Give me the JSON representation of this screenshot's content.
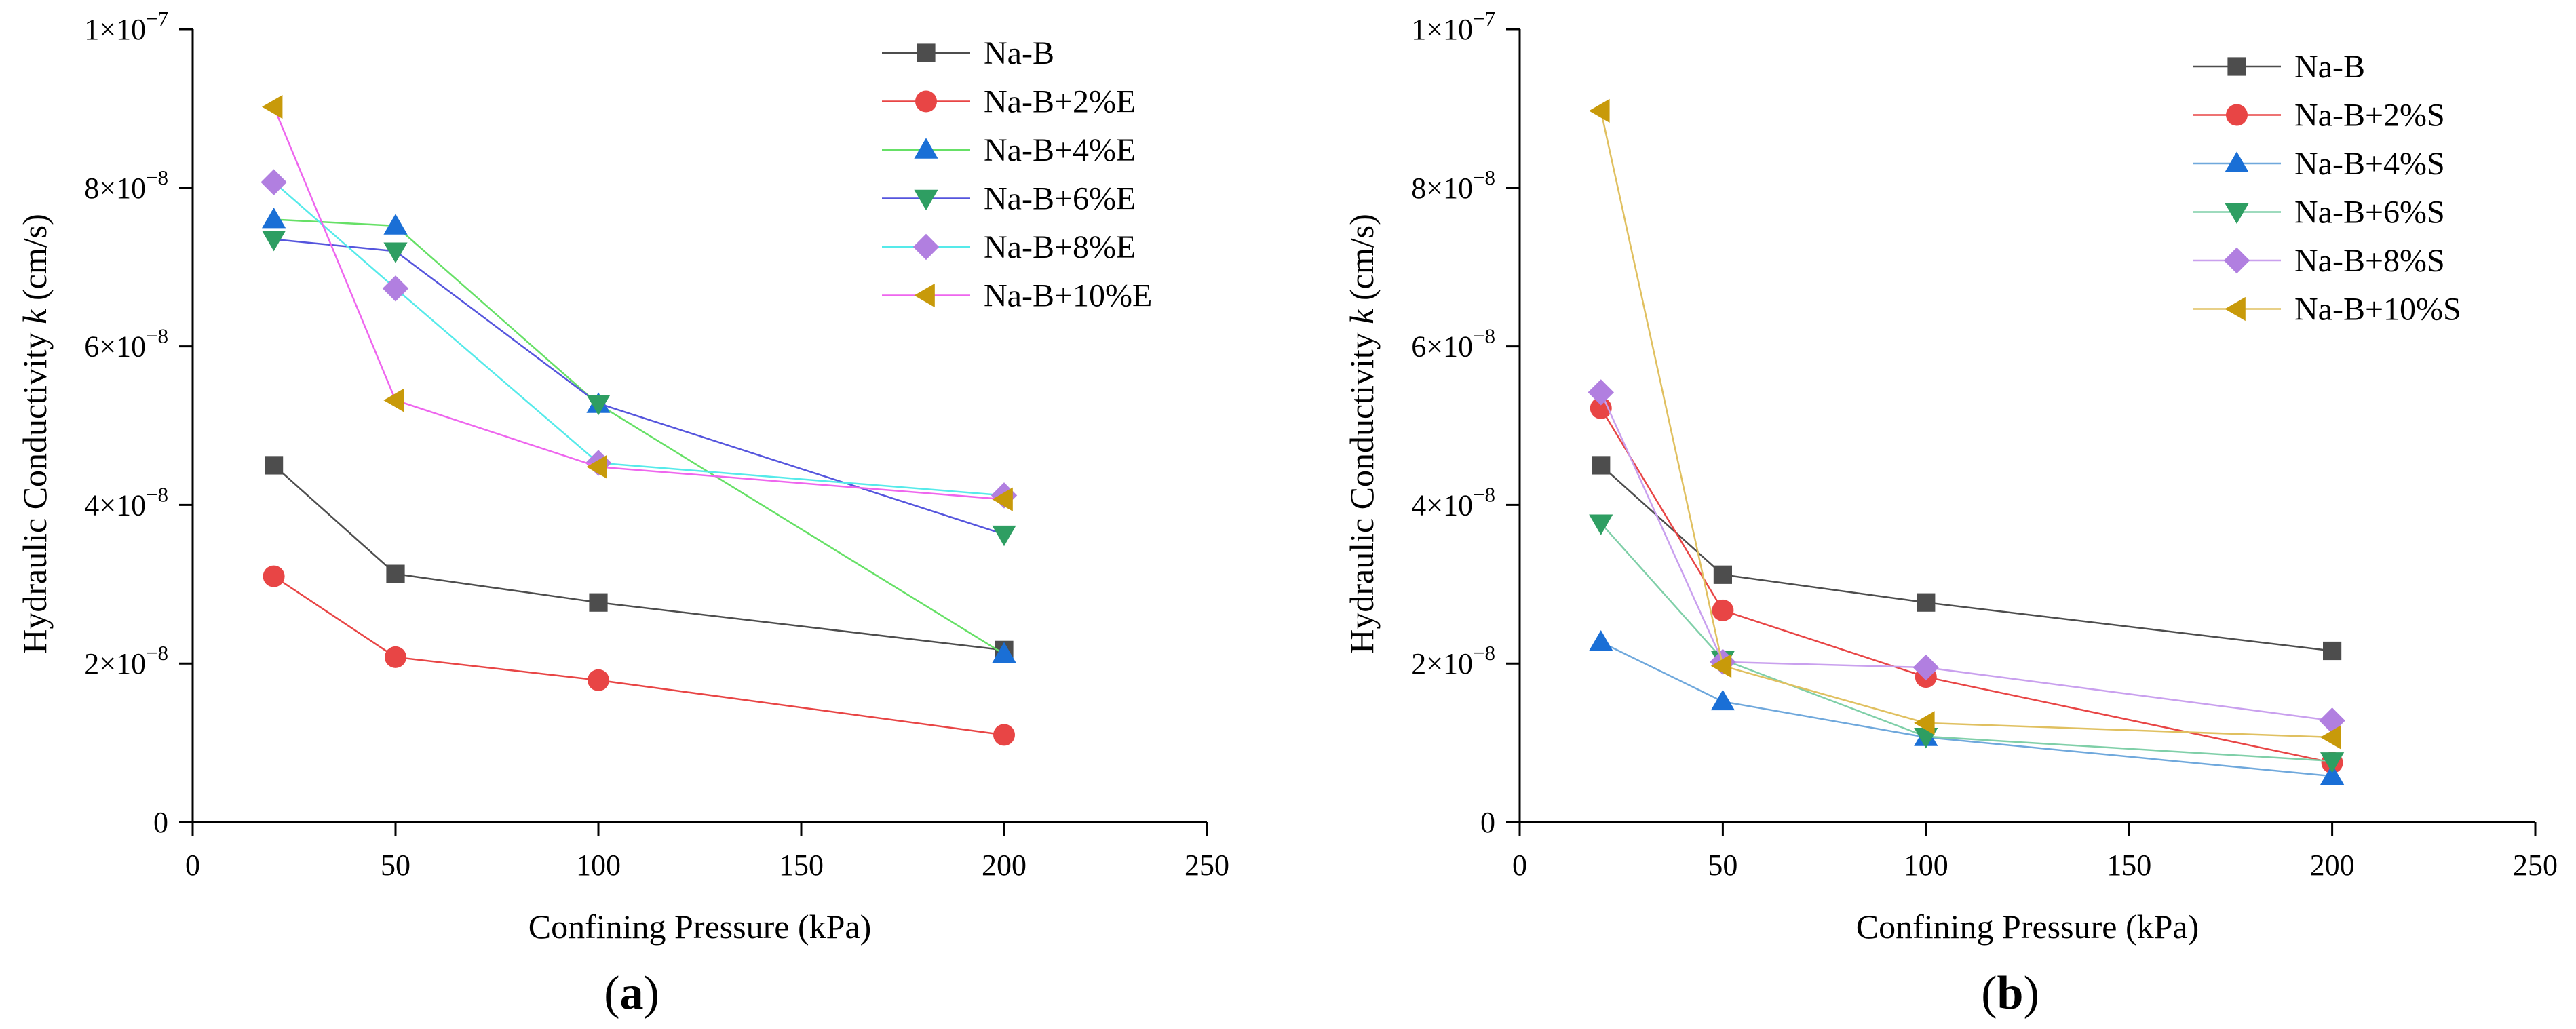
{
  "chart_data": [
    {
      "type": "line",
      "panel_label": "(a)",
      "title": "",
      "xlabel": "Confining Pressure (kPa)",
      "ylabel": "Hydraulic Conductivity k (cm/s)",
      "xlim": [
        0,
        250
      ],
      "ylim": [
        0,
        1e-07
      ],
      "x_ticks": [
        0,
        50,
        100,
        150,
        200,
        250
      ],
      "x_tick_labels": [
        "0",
        "50",
        "100",
        "150",
        "200",
        "250"
      ],
      "y_ticks": [
        0,
        2e-08,
        4e-08,
        6e-08,
        8e-08,
        1e-07
      ],
      "y_tick_labels": [
        {
          "base": "0",
          "exp": ""
        },
        {
          "base": "2×10",
          "exp": "−8"
        },
        {
          "base": "4×10",
          "exp": "−8"
        },
        {
          "base": "6×10",
          "exp": "−8"
        },
        {
          "base": "8×10",
          "exp": "−8"
        },
        {
          "base": "1×10",
          "exp": "−7"
        }
      ],
      "grid": false,
      "legend_position": "top-right",
      "x": [
        20,
        50,
        100,
        200
      ],
      "series": [
        {
          "name": "Na-B",
          "color": "#4d4d4d",
          "marker": "square",
          "values": [
            4.5e-08,
            3.13e-08,
            2.77e-08,
            2.17e-08
          ]
        },
        {
          "name": "Na-B+2%E",
          "color": "#e84545",
          "marker": "circle",
          "values": [
            3.1e-08,
            2.08e-08,
            1.79e-08,
            1.1e-08
          ]
        },
        {
          "name": "Na-B+4%E",
          "color": "#1a6fd6",
          "marker": "triangle-up",
          "line_color": "#66e066",
          "values": [
            7.6e-08,
            7.52e-08,
            5.27e-08,
            2.12e-08
          ]
        },
        {
          "name": "Na-B+6%E",
          "color": "#2e9e62",
          "marker": "triangle-down",
          "line_color": "#5555dd",
          "values": [
            7.35e-08,
            7.2e-08,
            5.28e-08,
            3.63e-08
          ]
        },
        {
          "name": "Na-B+8%E",
          "color": "#b17fe0",
          "marker": "diamond",
          "line_color": "#55eaea",
          "values": [
            8.07e-08,
            6.73e-08,
            4.53e-08,
            4.12e-08
          ]
        },
        {
          "name": "Na-B+10%E",
          "color": "#c89a0a",
          "marker": "triangle-left",
          "line_color": "#ee66ee",
          "values": [
            9.02e-08,
            5.32e-08,
            4.48e-08,
            4.07e-08
          ]
        }
      ]
    },
    {
      "type": "line",
      "panel_label": "(b)",
      "title": "",
      "xlabel": "Confining Pressure (kPa)",
      "ylabel": "Hydraulic Conductivity k (cm/s)",
      "xlim": [
        0,
        250
      ],
      "ylim": [
        0,
        1e-07
      ],
      "x_ticks": [
        0,
        50,
        100,
        150,
        200,
        250
      ],
      "x_tick_labels": [
        "0",
        "50",
        "100",
        "150",
        "200",
        "250"
      ],
      "y_ticks": [
        0,
        2e-08,
        4e-08,
        6e-08,
        8e-08,
        1e-07
      ],
      "y_tick_labels": [
        {
          "base": "0",
          "exp": ""
        },
        {
          "base": "2×10",
          "exp": "−8"
        },
        {
          "base": "4×10",
          "exp": "−8"
        },
        {
          "base": "6×10",
          "exp": "−8"
        },
        {
          "base": "8×10",
          "exp": "−8"
        },
        {
          "base": "1×10",
          "exp": "−7"
        }
      ],
      "grid": false,
      "legend_position": "top-right",
      "x": [
        20,
        50,
        100,
        200
      ],
      "series": [
        {
          "name": "Na-B",
          "color": "#4d4d4d",
          "marker": "square",
          "values": [
            4.5e-08,
            3.12e-08,
            2.77e-08,
            2.16e-08
          ]
        },
        {
          "name": "Na-B+2%S",
          "color": "#e84545",
          "marker": "circle",
          "values": [
            5.22e-08,
            2.67e-08,
            1.83e-08,
            7.5e-09
          ]
        },
        {
          "name": "Na-B+4%S",
          "color": "#1a6fd6",
          "marker": "triangle-up",
          "line_color": "#6fa8dc",
          "values": [
            2.27e-08,
            1.52e-08,
            1.07e-08,
            5.8e-09
          ]
        },
        {
          "name": "Na-B+6%S",
          "color": "#2e9e62",
          "marker": "triangle-down",
          "line_color": "#7fcfa8",
          "values": [
            3.77e-08,
            2.05e-08,
            1.08e-08,
            7.7e-09
          ]
        },
        {
          "name": "Na-B+8%S",
          "color": "#b17fe0",
          "marker": "diamond",
          "line_color": "#c9a0ee",
          "values": [
            5.42e-08,
            2.02e-08,
            1.95e-08,
            1.28e-08
          ]
        },
        {
          "name": "Na-B+10%S",
          "color": "#c89a0a",
          "marker": "triangle-left",
          "line_color": "#e0c060",
          "values": [
            8.97e-08,
            1.97e-08,
            1.25e-08,
            1.07e-08
          ]
        }
      ]
    }
  ]
}
